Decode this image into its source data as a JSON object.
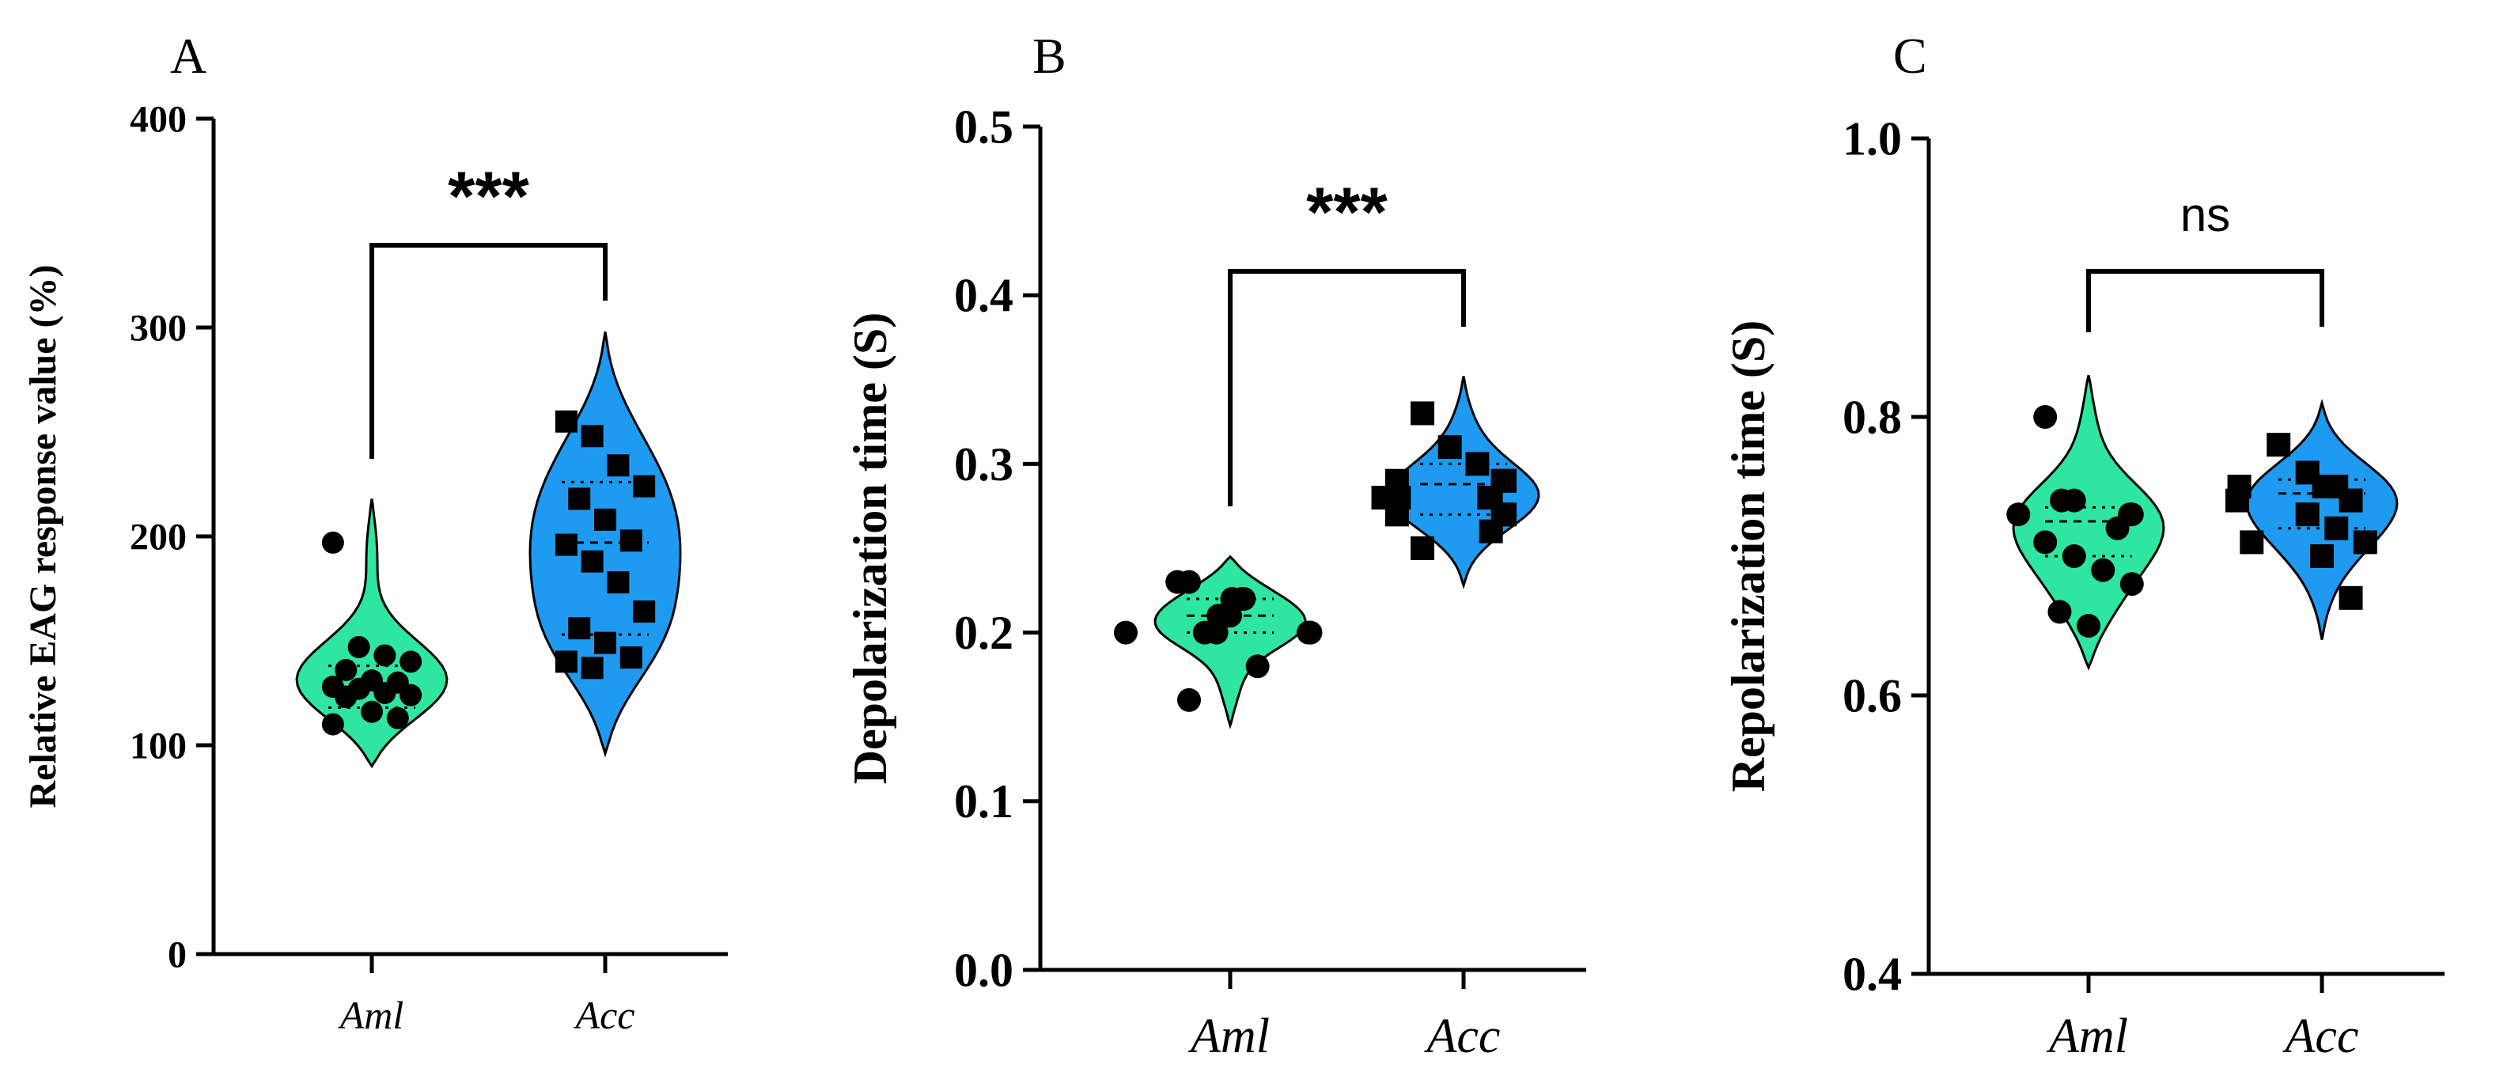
{
  "figure": {
    "panel_letters": [
      "A",
      "B",
      "C"
    ]
  },
  "chart_data": [
    {
      "panel": "A",
      "type": "violin",
      "ylabel": "Relative EAG response value (%)",
      "ylim": [
        0,
        400
      ],
      "yticks": [
        "0",
        "100",
        "200",
        "300",
        "400"
      ],
      "categories": [
        "Aml",
        "Acc"
      ],
      "significance": "***",
      "grid": false,
      "colors": {
        "Aml": "#2ee6a0",
        "Acc": "#1e9bf0"
      },
      "series": [
        {
          "name": "Aml",
          "marker": "circle",
          "values": [
            197,
            147,
            143,
            140,
            136,
            131,
            130,
            128,
            127,
            125,
            124,
            123,
            116,
            113,
            110
          ],
          "median": 128,
          "q1": 118,
          "q3": 138,
          "violin_range": [
            90,
            218
          ]
        },
        {
          "name": "Acc",
          "marker": "square",
          "values": [
            255,
            248,
            234,
            224,
            218,
            208,
            198,
            196,
            188,
            178,
            164,
            156,
            149,
            142,
            140,
            137
          ],
          "median": 197,
          "q1": 153,
          "q3": 226,
          "violin_range": [
            96,
            298
          ]
        }
      ]
    },
    {
      "panel": "B",
      "type": "violin",
      "ylabel": "Depolarization time (S)",
      "ylim": [
        0,
        0.5
      ],
      "yticks": [
        "0.0",
        "0.1",
        "0.2",
        "0.3",
        "0.4",
        "0.5"
      ],
      "categories": [
        "Aml",
        "Acc"
      ],
      "significance": "***",
      "grid": false,
      "colors": {
        "Aml": "#2ee6a0",
        "Acc": "#1e9bf0"
      },
      "series": [
        {
          "name": "Aml",
          "marker": "circle",
          "values": [
            0.23,
            0.23,
            0.22,
            0.22,
            0.22,
            0.21,
            0.21,
            0.21,
            0.2,
            0.2,
            0.2,
            0.2,
            0.2,
            0.18,
            0.16
          ],
          "median": 0.21,
          "q1": 0.2,
          "q3": 0.22,
          "violin_range": [
            0.145,
            0.245
          ]
        },
        {
          "name": "Acc",
          "marker": "square",
          "values": [
            0.33,
            0.31,
            0.3,
            0.29,
            0.29,
            0.29,
            0.28,
            0.28,
            0.28,
            0.28,
            0.27,
            0.27,
            0.27,
            0.26,
            0.25
          ],
          "median": 0.288,
          "q1": 0.27,
          "q3": 0.3,
          "violin_range": [
            0.228,
            0.352
          ]
        }
      ]
    },
    {
      "panel": "C",
      "type": "violin",
      "ylabel": "Repolarization time (S)",
      "ylim": [
        0.4,
        1.0
      ],
      "yticks": [
        "0.4",
        "0.6",
        "0.8",
        "1.0"
      ],
      "categories": [
        "Aml",
        "Acc"
      ],
      "significance": "ns",
      "grid": false,
      "colors": {
        "Aml": "#2ee6a0",
        "Acc": "#1e9bf0"
      },
      "series": [
        {
          "name": "Aml",
          "marker": "circle",
          "values": [
            0.8,
            0.74,
            0.74,
            0.73,
            0.73,
            0.73,
            0.72,
            0.71,
            0.7,
            0.69,
            0.68,
            0.66,
            0.65
          ],
          "median": 0.725,
          "q1": 0.7,
          "q3": 0.735,
          "violin_range": [
            0.62,
            0.83
          ]
        },
        {
          "name": "Acc",
          "marker": "square",
          "values": [
            0.78,
            0.76,
            0.75,
            0.75,
            0.75,
            0.75,
            0.74,
            0.74,
            0.73,
            0.72,
            0.71,
            0.71,
            0.7,
            0.67
          ],
          "median": 0.745,
          "q1": 0.72,
          "q3": 0.755,
          "violin_range": [
            0.64,
            0.81
          ]
        }
      ]
    }
  ]
}
